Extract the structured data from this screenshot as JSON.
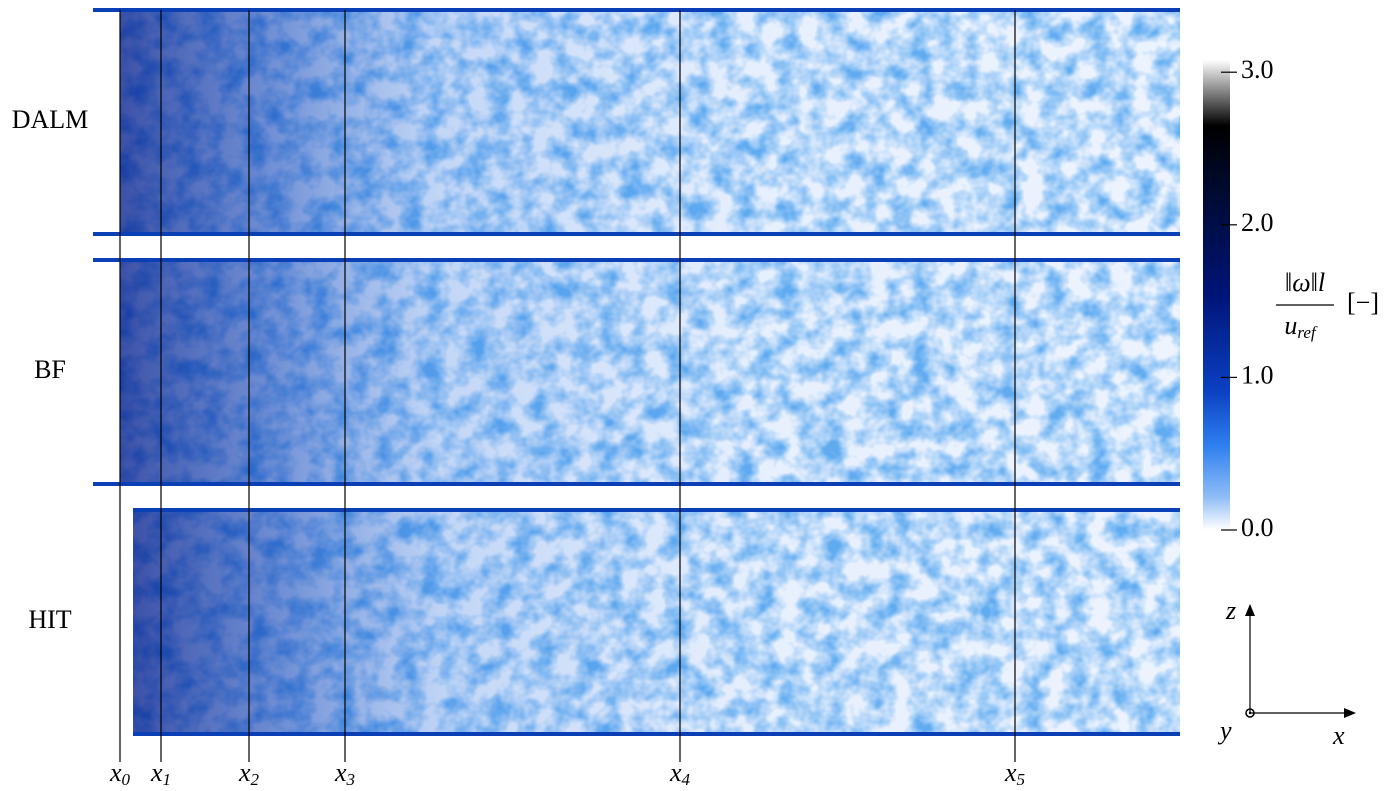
{
  "panels": [
    {
      "label": "DALM"
    },
    {
      "label": "BF"
    },
    {
      "label": "HIT"
    }
  ],
  "stations": [
    {
      "base": "x",
      "sub": "0"
    },
    {
      "base": "x",
      "sub": "1"
    },
    {
      "base": "x",
      "sub": "2"
    },
    {
      "base": "x",
      "sub": "3"
    },
    {
      "base": "x",
      "sub": "4"
    },
    {
      "base": "x",
      "sub": "5"
    }
  ],
  "colorbar": {
    "range": [
      0,
      3.08
    ],
    "ticks": [
      {
        "value": 0,
        "label": "0.0"
      },
      {
        "value": 1,
        "label": "1.0"
      },
      {
        "value": 2,
        "label": "2.0"
      },
      {
        "value": 3,
        "label": "3.0"
      }
    ],
    "label": {
      "numerator": "‖ω‖l",
      "denominator": "u",
      "denominator_sub": "ref",
      "unit": "[−]"
    }
  },
  "axes": {
    "z": "z",
    "y": "y",
    "x": "x"
  }
}
